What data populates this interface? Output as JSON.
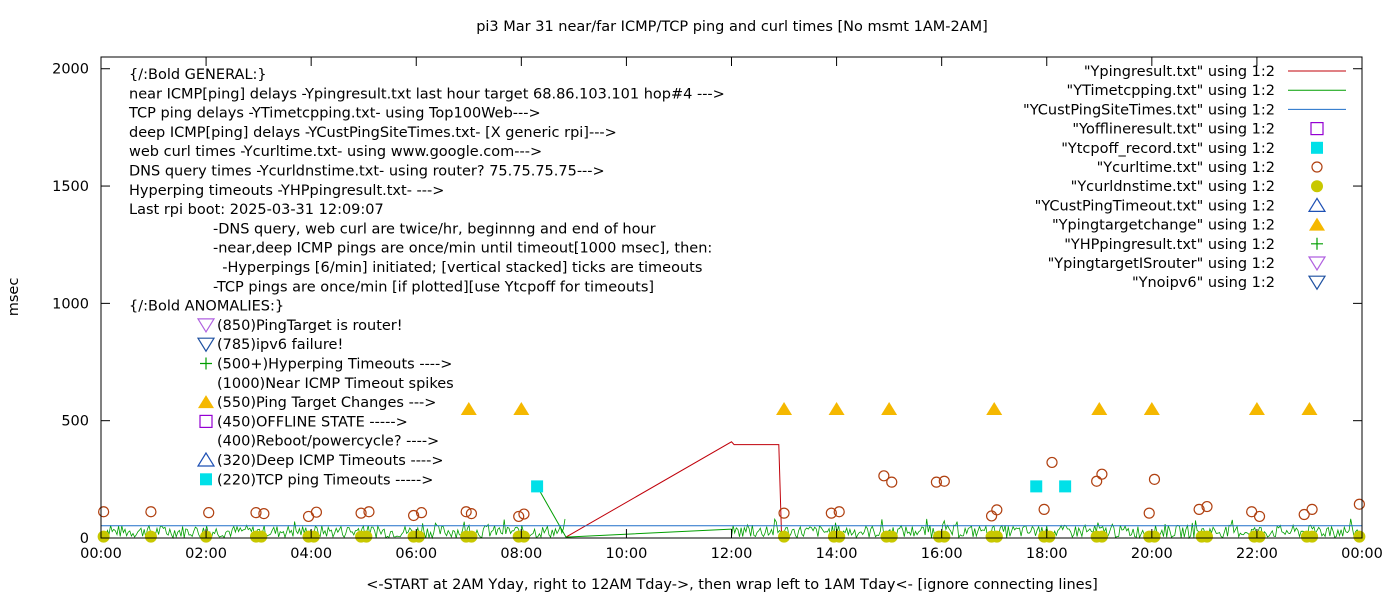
{
  "chart_data": {
    "type": "scatter",
    "title": "pi3 Mar 31  near/far ICMP/TCP ping and curl times [No msmt 1AM-2AM]",
    "xlabel": "<-START at 2AM Yday, right to 12AM Tday->, then wrap left to 1AM Tday<- [ignore connecting lines]",
    "ylabel": "msec",
    "xlim": [
      0,
      24
    ],
    "ylim": [
      0,
      2050
    ],
    "yticks": [
      0,
      500,
      1000,
      1500,
      2000
    ],
    "xtick_labels": [
      "00:00",
      "02:00",
      "04:00",
      "06:00",
      "08:00",
      "10:00",
      "12:00",
      "14:00",
      "16:00",
      "18:00",
      "20:00",
      "22:00",
      "00:00"
    ],
    "grid": false,
    "legend_position": "top-right",
    "legend": [
      {
        "label": "\"Ypingresult.txt\" using 1:2",
        "style": "line",
        "color": "#c0000a"
      },
      {
        "label": "\"YTimetcpping.txt\" using 1:2",
        "style": "line",
        "color": "#009e00"
      },
      {
        "label": "\"YCustPingSiteTimes.txt\" using 1:2",
        "style": "line",
        "color": "#1e6ec8"
      },
      {
        "label": "\"Yofflineresult.txt\" using 1:2",
        "style": "open-square",
        "color": "#9400d3"
      },
      {
        "label": "\"Ytcpoff_record.txt\" using 1:2",
        "style": "filled-square",
        "color": "#00e0e8"
      },
      {
        "label": "\"Ycurltime.txt\" using 1:2",
        "style": "open-circle",
        "color": "#b04010"
      },
      {
        "label": "\"Ycurldnstime.txt\" using 1:2",
        "style": "filled-circle",
        "color": "#c8c800"
      },
      {
        "label": "\"YCustPingTimeout.txt\" using 1:2",
        "style": "open-triangle-up",
        "color": "#1e50b4"
      },
      {
        "label": "\"Ypingtargetchange\" using 1:2",
        "style": "filled-triangle-up",
        "color": "#f5b800"
      },
      {
        "label": "\"YHPpingresult.txt\" using 1:2",
        "style": "plus",
        "color": "#009e00"
      },
      {
        "label": "\"YpingtargetISrouter\" using 1:2",
        "style": "open-triangle-down",
        "color": "#b060e0"
      },
      {
        "label": "\"Ynoipv6\" using 1:2",
        "style": "open-triangle-down",
        "color": "#1e50a0"
      }
    ],
    "notes": [
      "{/:Bold GENERAL:}",
      "near ICMP[ping] delays -Ypingresult.txt last hour target 68.86.103.101 hop#4 --->",
      "TCP ping delays -YTimetcpping.txt- using Top100Web--->",
      "deep ICMP[ping] delays -YCustPingSiteTimes.txt- [X generic rpi]--->",
      "web curl times -Ycurltime.txt- using www.google.com--->",
      "DNS query times -Ycurldnstime.txt- using router? 75.75.75.75--->",
      "Hyperping timeouts -YHPpingresult.txt- --->",
      "Last rpi boot: 2025-03-31 12:09:07"
    ],
    "notes_indented": [
      "-DNS query, web curl are twice/hr, beginnng and end of hour",
      "-near,deep ICMP pings are once/min until timeout[1000 msec], then:",
      "  -Hyperpings [6/min] initiated; [vertical stacked] ticks are timeouts",
      "-TCP pings are once/min [if plotted][use Ytcpoff for timeouts]"
    ],
    "anomalies_title": "{/:Bold ANOMALIES:}",
    "anomalies": [
      {
        "label": "(850)PingTarget is router!",
        "marker": "open-triangle-down",
        "color": "#b060e0"
      },
      {
        "label": "(785)ipv6 failure!",
        "marker": "open-triangle-down",
        "color": "#1e50a0"
      },
      {
        "label": "(500+)Hyperping Timeouts ---->",
        "marker": "plus",
        "color": "#009e00"
      },
      {
        "label": "(1000)Near ICMP Timeout spikes",
        "marker": "none",
        "color": "#000000"
      },
      {
        "label": "(550)Ping Target Changes --->",
        "marker": "filled-triangle-up",
        "color": "#f5b800"
      },
      {
        "label": "(450)OFFLINE STATE ----->",
        "marker": "open-square",
        "color": "#9400d3"
      },
      {
        "label": "(400)Reboot/powercycle? ---->",
        "marker": "none",
        "color": "#000000"
      },
      {
        "label": "(320)Deep ICMP Timeouts ---->",
        "marker": "open-triangle-up",
        "color": "#1e50b4"
      },
      {
        "label": "(220)TCP ping Timeouts ----->",
        "marker": "filled-square",
        "color": "#00e0e8"
      }
    ],
    "series": [
      {
        "name": "\"Ypingresult.txt\" using 1:2",
        "kind": "line",
        "color": "#c0000a",
        "points": [
          [
            8.85,
            4
          ],
          [
            12.0,
            410
          ],
          [
            12.05,
            398
          ],
          [
            12.9,
            398
          ],
          [
            12.95,
            30
          ],
          [
            13.0,
            6
          ]
        ]
      },
      {
        "name": "\"YTimetcpping.txt\" using 1:2",
        "kind": "line",
        "color": "#009e00",
        "points": [
          [
            8.3,
            220
          ],
          [
            8.85,
            4
          ],
          [
            12.0,
            38
          ]
        ]
      },
      {
        "name": "\"YCustPingSiteTimes.txt\" using 1:2",
        "kind": "line",
        "color": "#1e6ec8",
        "points": [
          [
            0,
            52
          ],
          [
            24,
            52
          ]
        ]
      },
      {
        "name": "\"Ytcpoff_record.txt\" using 1:2",
        "kind": "filled-square",
        "color": "#00e0e8",
        "points": [
          [
            8.3,
            220
          ],
          [
            17.8,
            220
          ],
          [
            18.35,
            220
          ]
        ]
      },
      {
        "name": "\"Ycurltime.txt\" using 1:2",
        "kind": "open-circle",
        "color": "#b04010",
        "points": [
          [
            0.05,
            112
          ],
          [
            0.95,
            112
          ],
          [
            2.05,
            108
          ],
          [
            2.95,
            108
          ],
          [
            3.1,
            104
          ],
          [
            3.95,
            92
          ],
          [
            4.1,
            110
          ],
          [
            4.95,
            106
          ],
          [
            5.1,
            112
          ],
          [
            5.95,
            96
          ],
          [
            6.1,
            108
          ],
          [
            6.95,
            112
          ],
          [
            7.05,
            104
          ],
          [
            7.95,
            92
          ],
          [
            8.05,
            102
          ],
          [
            13.0,
            106
          ],
          [
            13.9,
            106
          ],
          [
            14.05,
            112
          ],
          [
            14.9,
            265
          ],
          [
            15.05,
            238
          ],
          [
            15.9,
            238
          ],
          [
            16.05,
            242
          ],
          [
            16.95,
            94
          ],
          [
            17.05,
            120
          ],
          [
            17.95,
            122
          ],
          [
            18.1,
            322
          ],
          [
            18.95,
            242
          ],
          [
            19.05,
            272
          ],
          [
            19.95,
            106
          ],
          [
            20.05,
            250
          ],
          [
            20.9,
            122
          ],
          [
            21.05,
            134
          ],
          [
            21.9,
            112
          ],
          [
            22.05,
            92
          ],
          [
            22.9,
            100
          ],
          [
            23.05,
            122
          ],
          [
            23.95,
            144
          ]
        ]
      },
      {
        "name": "\"Ycurldnstime.txt\" using 1:2",
        "kind": "filled-circle",
        "color": "#c8c800",
        "points": [
          [
            0.05,
            6
          ],
          [
            0.95,
            6
          ],
          [
            2.0,
            6
          ],
          [
            2.95,
            6
          ],
          [
            3.05,
            6
          ],
          [
            3.95,
            6
          ],
          [
            4.05,
            6
          ],
          [
            4.95,
            6
          ],
          [
            5.05,
            6
          ],
          [
            5.95,
            6
          ],
          [
            6.05,
            6
          ],
          [
            6.95,
            6
          ],
          [
            7.05,
            6
          ],
          [
            7.95,
            6
          ],
          [
            8.05,
            6
          ],
          [
            13.0,
            6
          ],
          [
            13.95,
            6
          ],
          [
            14.05,
            6
          ],
          [
            14.95,
            6
          ],
          [
            15.05,
            6
          ],
          [
            15.95,
            6
          ],
          [
            16.05,
            6
          ],
          [
            16.95,
            6
          ],
          [
            17.05,
            6
          ],
          [
            17.95,
            6
          ],
          [
            18.05,
            6
          ],
          [
            18.95,
            6
          ],
          [
            19.05,
            6
          ],
          [
            19.95,
            6
          ],
          [
            20.05,
            6
          ],
          [
            20.95,
            6
          ],
          [
            21.05,
            6
          ],
          [
            21.95,
            6
          ],
          [
            22.05,
            6
          ],
          [
            22.95,
            6
          ],
          [
            23.05,
            6
          ],
          [
            23.95,
            6
          ]
        ]
      },
      {
        "name": "\"Ypingtargetchange\" using 1:2",
        "kind": "filled-triangle-up",
        "color": "#f5b800",
        "points": [
          [
            7.0,
            550
          ],
          [
            8.0,
            550
          ],
          [
            13.0,
            550
          ],
          [
            14.0,
            550
          ],
          [
            15.0,
            550
          ],
          [
            17.0,
            550
          ],
          [
            19.0,
            550
          ],
          [
            20.0,
            550
          ],
          [
            22.0,
            550
          ],
          [
            23.0,
            550
          ]
        ]
      },
      {
        "name": "\"YHPpingresult.txt\" using 1:2",
        "kind": "dense-noise",
        "color": "#009e00",
        "ranges": [
          [
            0,
            8.85
          ],
          [
            12.0,
            24
          ]
        ],
        "low": 0,
        "high": 55
      }
    ]
  }
}
